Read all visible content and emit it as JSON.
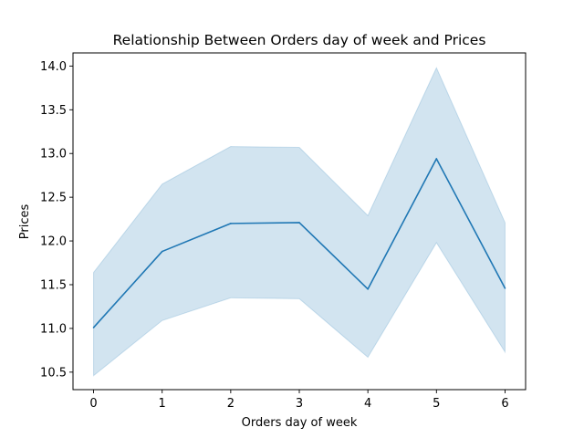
{
  "chart_data": {
    "type": "line",
    "title": "Relationship Between Orders day of week and Prices",
    "xlabel": "Orders day of week",
    "ylabel": "Prices",
    "x": [
      0,
      1,
      2,
      3,
      4,
      5,
      6
    ],
    "xlim": [
      -0.3,
      6.3
    ],
    "ylim": [
      10.3,
      14.15
    ],
    "xticks": [
      0,
      1,
      2,
      3,
      4,
      5,
      6
    ],
    "yticks": [
      10.5,
      11.0,
      11.5,
      12.0,
      12.5,
      13.0,
      13.5,
      14.0
    ],
    "ytick_labels": [
      "10.5",
      "11.0",
      "11.5",
      "12.0",
      "12.5",
      "13.0",
      "13.5",
      "14.0"
    ],
    "grid": false,
    "series": [
      {
        "values": [
          11.01,
          11.88,
          12.2,
          12.21,
          11.45,
          12.94,
          11.46
        ],
        "ci_lower": [
          10.46,
          11.09,
          11.35,
          11.34,
          10.67,
          11.98,
          10.73
        ],
        "ci_upper": [
          11.64,
          12.65,
          13.08,
          13.07,
          12.29,
          13.98,
          12.21
        ],
        "line_color": "#1f77b4",
        "band_color": "#1f77b4"
      }
    ]
  }
}
